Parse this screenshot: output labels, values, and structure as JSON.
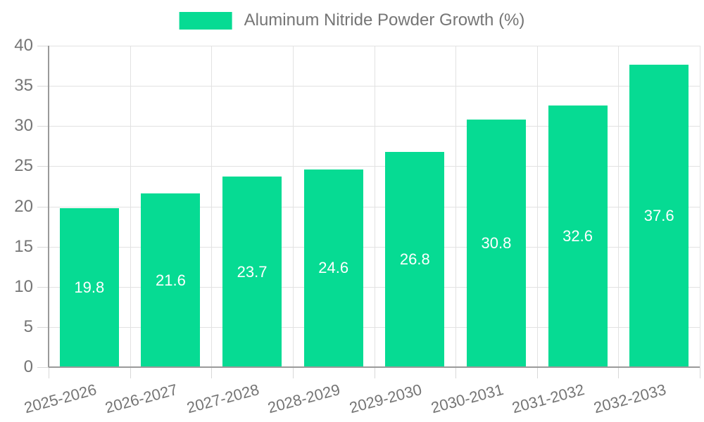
{
  "legend": {
    "label": "Aluminum Nitride Powder Growth (%)"
  },
  "chart_data": {
    "type": "bar",
    "title": "Aluminum Nitride Powder Growth (%)",
    "categories": [
      "2025-2026",
      "2026-2027",
      "2027-2028",
      "2028-2029",
      "2029-2030",
      "2030-2031",
      "2031-2032",
      "2032-2033"
    ],
    "values": [
      19.8,
      21.6,
      23.7,
      24.6,
      26.8,
      30.8,
      32.6,
      37.6
    ],
    "xlabel": "",
    "ylabel": "",
    "ylim": [
      0,
      40
    ],
    "y_ticks": [
      0,
      5,
      10,
      15,
      20,
      25,
      30,
      35,
      40
    ],
    "grid": true,
    "legend_position": "top-center",
    "colors": {
      "bar": "#06DB93",
      "value_label": "#FFFFFF",
      "grid_line": "#E2E2E2",
      "tick_line": "#D8D8D8",
      "axis_line": "#9A9A9A",
      "text": "#757575"
    }
  }
}
